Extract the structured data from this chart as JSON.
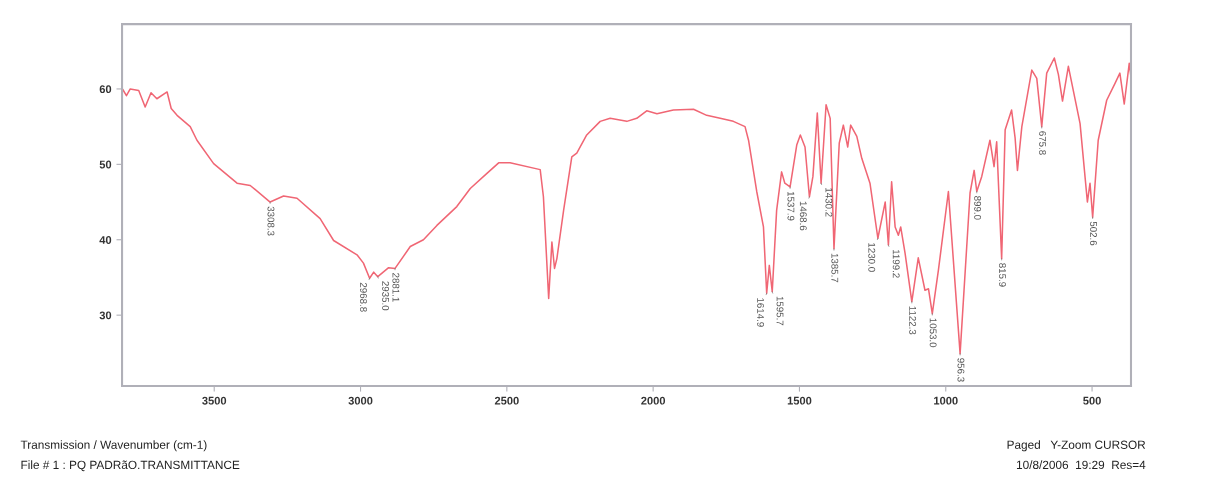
{
  "chart_data": {
    "type": "line",
    "x": [
      3812,
      3800,
      3787,
      3758,
      3736,
      3716,
      3696,
      3661,
      3647,
      3627,
      3582,
      3559,
      3502,
      3422,
      3377,
      3309,
      3263,
      3217,
      3138,
      3092,
      3012,
      2990,
      2969,
      2955,
      2941,
      2904,
      2882,
      2830,
      2785,
      2739,
      2671,
      2625,
      2568,
      2528,
      2489,
      2386,
      2375,
      2357,
      2346,
      2337,
      2329,
      2306,
      2278,
      2261,
      2227,
      2181,
      2147,
      2090,
      2056,
      2022,
      1987,
      1931,
      1862,
      1817,
      1771,
      1726,
      1686,
      1674,
      1646,
      1623,
      1612,
      1603,
      1593,
      1578,
      1561,
      1550,
      1532,
      1509,
      1497,
      1481,
      1466,
      1454,
      1439,
      1426,
      1409,
      1395,
      1382,
      1364,
      1350,
      1335,
      1325,
      1304,
      1287,
      1259,
      1232,
      1207,
      1196,
      1185,
      1173,
      1162,
      1154,
      1139,
      1116,
      1094,
      1071,
      1059,
      1046,
      1025,
      991,
      951,
      917,
      903,
      894,
      877,
      849,
      835,
      826,
      809,
      797,
      775,
      763,
      755,
      740,
      706,
      689,
      672,
      655,
      629,
      615,
      601,
      581,
      541,
      516,
      507,
      498,
      479,
      450,
      422,
      405,
      390,
      373,
      368
    ],
    "series": [
      {
        "color": "#f06674",
        "values": [
          59.9,
          59.1,
          60,
          59.8,
          57.6,
          59.5,
          58.7,
          59.6,
          57.4,
          56.5,
          55,
          53.2,
          50.1,
          47.5,
          47.2,
          45.0,
          45.8,
          45.5,
          42.8,
          39.9,
          38.0,
          36.9,
          34.9,
          35.7,
          35.1,
          36.3,
          36.2,
          39.1,
          40,
          41.9,
          44.4,
          46.8,
          48.8,
          50.2,
          50.2,
          49.3,
          45.7,
          32.2,
          39.7,
          36.2,
          37.5,
          43.9,
          51.0,
          51.5,
          53.9,
          55.7,
          56.1,
          55.7,
          56.1,
          57.1,
          56.7,
          57.2,
          57.3,
          56.5,
          56.1,
          55.7,
          55.0,
          53.2,
          46.4,
          41.7,
          32.9,
          36.6,
          33.1,
          43.9,
          49.0,
          47.5,
          47.0,
          52.6,
          53.9,
          52.3,
          45.7,
          48.4,
          56.8,
          47.5,
          57.9,
          56.1,
          38.8,
          52.8,
          55.2,
          52.3,
          55.2,
          53.7,
          50.8,
          47.5,
          40.2,
          45.0,
          39.3,
          47.7,
          41.7,
          40.6,
          41.7,
          38.2,
          31.8,
          37.6,
          33.3,
          33.5,
          30.2,
          36.0,
          46.4,
          24.9,
          46.2,
          49.2,
          46.4,
          48.4,
          53.2,
          49.7,
          53.0,
          37.5,
          54.6,
          57.2,
          53.5,
          49.2,
          55.0,
          62.5,
          61.4,
          55.0,
          62.1,
          64.1,
          61.9,
          58.4,
          63.0,
          55.4,
          45.0,
          47.5,
          43.0,
          53.2,
          58.5,
          60.7,
          62.1,
          58.0,
          63.4,
          61.9
        ]
      }
    ],
    "xlim": [
      3815,
      367
    ],
    "xticks": [
      3500,
      3000,
      2500,
      2000,
      1500,
      1000,
      500
    ],
    "ylim": [
      20.6,
      68.6
    ],
    "yticks": [
      30,
      40,
      50,
      60
    ],
    "grid": false,
    "marker": "none",
    "line_style": "solid",
    "annotations": [
      {
        "text": "3308.3",
        "x": 3309,
        "y": 45.0
      },
      {
        "text": "2968.8",
        "x": 2969,
        "y": 34.9
      },
      {
        "text": "2935.0",
        "x": 2941,
        "y": 35.1
      },
      {
        "text": "2881.1",
        "x": 2882,
        "y": 36.2
      },
      {
        "text": "1614.9",
        "x": 1612,
        "y": 32.9
      },
      {
        "text": "1595.7",
        "x": 1593,
        "y": 33.1
      },
      {
        "text": "1537.9",
        "x": 1532,
        "y": 47.0
      },
      {
        "text": "1468.6",
        "x": 1466,
        "y": 45.7
      },
      {
        "text": "1430.2",
        "x": 1426,
        "y": 47.5
      },
      {
        "text": "1385.7",
        "x": 1382,
        "y": 38.8
      },
      {
        "text": "1230.0",
        "x": 1232,
        "y": 40.2
      },
      {
        "text": "1199.2",
        "x": 1196,
        "y": 39.3
      },
      {
        "text": "1122.3",
        "x": 1116,
        "y": 31.8
      },
      {
        "text": "1053.0",
        "x": 1046,
        "y": 30.2
      },
      {
        "text": "956.3",
        "x": 951,
        "y": 24.9
      },
      {
        "text": "899.0",
        "x": 894,
        "y": 46.4
      },
      {
        "text": "815.9",
        "x": 809,
        "y": 37.5
      },
      {
        "text": "675.8",
        "x": 672,
        "y": 55.0
      },
      {
        "text": "502.6",
        "x": 498,
        "y": 43.0
      },
      "Transmission / Wavenumber (cm-1)",
      "File # 1 : PQ PADRãO.TRANSMITTANCE",
      "Paged   Y-Zoom CURSOR",
      "10/8/2006  19:29  Res=4"
    ]
  }
}
